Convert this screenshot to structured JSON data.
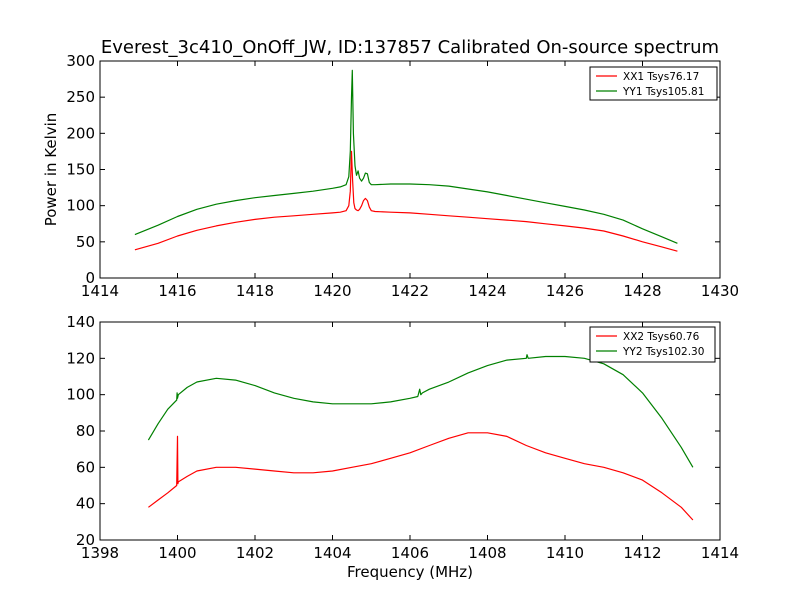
{
  "title": "Everest_3c410_OnOff_JW, ID:137857 Calibrated On-source spectrum",
  "chart_data": [
    {
      "type": "line",
      "title": "Everest_3c410_OnOff_JW, ID:137857 Calibrated On-source spectrum",
      "xlabel": "",
      "ylabel": "Power in Kelvin",
      "xlim": [
        1414,
        1430
      ],
      "ylim": [
        0,
        300
      ],
      "xticks": [
        "1414",
        "1416",
        "1418",
        "1420",
        "1422",
        "1424",
        "1426",
        "1428",
        "1430"
      ],
      "yticks": [
        "0",
        "50",
        "100",
        "150",
        "200",
        "250",
        "300"
      ],
      "grid": false,
      "legend": "top-right",
      "series": [
        {
          "name": "XX1 Tsys76.17",
          "color": "#ff0000",
          "x": [
            1414.9,
            1415.5,
            1416.0,
            1416.5,
            1417.0,
            1417.5,
            1418.0,
            1418.5,
            1419.0,
            1419.5,
            1420.0,
            1420.2,
            1420.35,
            1420.42,
            1420.46,
            1420.49,
            1420.52,
            1420.55,
            1420.58,
            1420.62,
            1420.66,
            1420.7,
            1420.75,
            1420.8,
            1420.85,
            1420.9,
            1420.95,
            1421.0,
            1421.1,
            1421.5,
            1422.0,
            1422.5,
            1423.0,
            1423.5,
            1424.0,
            1424.5,
            1425.0,
            1425.5,
            1426.0,
            1426.5,
            1427.0,
            1427.5,
            1428.0,
            1428.5,
            1428.9
          ],
          "y": [
            39,
            48,
            58,
            66,
            72,
            77,
            81,
            84,
            86,
            88,
            90,
            91,
            93,
            100,
            120,
            175,
            135,
            104,
            96,
            94,
            93,
            95,
            100,
            107,
            110,
            107,
            98,
            93,
            92,
            91,
            90,
            88,
            86,
            84,
            82,
            80,
            78,
            75,
            72,
            69,
            65,
            58,
            50,
            43,
            37
          ]
        },
        {
          "name": "YY1 Tsys105.81",
          "color": "#008000",
          "x": [
            1414.9,
            1415.5,
            1416.0,
            1416.5,
            1417.0,
            1417.5,
            1418.0,
            1418.5,
            1419.0,
            1419.5,
            1420.0,
            1420.2,
            1420.35,
            1420.42,
            1420.46,
            1420.49,
            1420.51,
            1420.54,
            1420.58,
            1420.62,
            1420.66,
            1420.7,
            1420.75,
            1420.8,
            1420.85,
            1420.9,
            1420.95,
            1421.0,
            1421.1,
            1421.5,
            1422.0,
            1422.5,
            1423.0,
            1423.5,
            1424.0,
            1424.5,
            1425.0,
            1425.5,
            1426.0,
            1426.5,
            1427.0,
            1427.5,
            1428.0,
            1428.5,
            1428.9
          ],
          "y": [
            60,
            73,
            85,
            95,
            102,
            107,
            111,
            114,
            117,
            120,
            124,
            126,
            129,
            140,
            175,
            250,
            287,
            200,
            155,
            142,
            148,
            138,
            134,
            138,
            145,
            144,
            132,
            129,
            129,
            130,
            130,
            129,
            127,
            123,
            119,
            114,
            109,
            104,
            99,
            94,
            88,
            80,
            68,
            57,
            48
          ]
        }
      ]
    },
    {
      "type": "line",
      "title": "",
      "xlabel": "Frequency (MHz)",
      "ylabel": "",
      "xlim": [
        1398,
        1414
      ],
      "ylim": [
        20,
        140
      ],
      "xticks": [
        "1398",
        "1400",
        "1402",
        "1404",
        "1406",
        "1408",
        "1410",
        "1412",
        "1414"
      ],
      "yticks": [
        "20",
        "40",
        "60",
        "80",
        "100",
        "120",
        "140"
      ],
      "grid": false,
      "legend": "top-right",
      "series": [
        {
          "name": "XX2 Tsys60.76",
          "color": "#ff0000",
          "x": [
            1399.25,
            1399.5,
            1399.75,
            1399.98,
            1399.99,
            1400.0,
            1400.01,
            1400.02,
            1400.25,
            1400.5,
            1401.0,
            1401.5,
            1402.0,
            1402.5,
            1403.0,
            1403.5,
            1404.0,
            1404.5,
            1405.0,
            1405.5,
            1406.0,
            1406.5,
            1407.0,
            1407.5,
            1408.0,
            1408.5,
            1409.0,
            1409.5,
            1410.0,
            1410.5,
            1411.0,
            1411.5,
            1412.0,
            1412.5,
            1413.0,
            1413.3
          ],
          "y": [
            38,
            42,
            46,
            50,
            64,
            77,
            51,
            52,
            55,
            58,
            60,
            60,
            59,
            58,
            57,
            57,
            58,
            60,
            62,
            65,
            68,
            72,
            76,
            79,
            79,
            77,
            72,
            68,
            65,
            62,
            60,
            57,
            53,
            46,
            38,
            31
          ]
        },
        {
          "name": "YY2 Tsys102.30",
          "color": "#008000",
          "x": [
            1399.25,
            1399.5,
            1399.75,
            1399.98,
            1399.99,
            1400.0,
            1400.01,
            1400.02,
            1400.25,
            1400.5,
            1401.0,
            1401.5,
            1402.0,
            1402.5,
            1403.0,
            1403.5,
            1404.0,
            1404.5,
            1405.0,
            1405.5,
            1406.0,
            1406.2,
            1406.25,
            1406.28,
            1406.32,
            1406.5,
            1407.0,
            1407.5,
            1408.0,
            1408.5,
            1409.0,
            1409.02,
            1409.05,
            1409.5,
            1410.0,
            1410.5,
            1411.0,
            1411.5,
            1412.0,
            1412.5,
            1413.0,
            1413.3
          ],
          "y": [
            75,
            84,
            92,
            97,
            101,
            98,
            99,
            100,
            104,
            107,
            109,
            108,
            105,
            101,
            98,
            96,
            95,
            95,
            95,
            96,
            98,
            99,
            103,
            100,
            101,
            103,
            107,
            112,
            116,
            119,
            120,
            122,
            120,
            121,
            121,
            120,
            117,
            111,
            101,
            87,
            71,
            60
          ]
        }
      ]
    }
  ]
}
